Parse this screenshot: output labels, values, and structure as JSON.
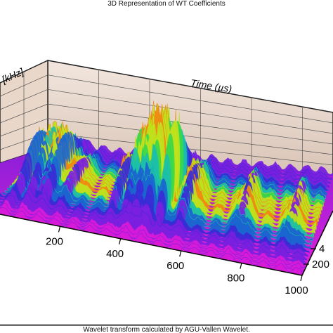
{
  "chart_data": {
    "type": "surface",
    "title": "3D Representation of WT Coefficients",
    "xlabel": "Time (µs)",
    "ylabel": "[kHz]",
    "x_ticks": [
      "200",
      "400",
      "600",
      "800",
      "1000"
    ],
    "y_ticks": [
      "4",
      "200"
    ],
    "xlim": [
      0,
      1000
    ],
    "grid": true,
    "colormap": [
      "#d81ad8",
      "#7b1fe0",
      "#3a2bd6",
      "#1a66d0",
      "#1cc0a8",
      "#39d84a",
      "#bfe21c",
      "#f08a12",
      "#e21a1a"
    ],
    "peaks": [
      {
        "t": 10,
        "amp": 0.42
      },
      {
        "t": 60,
        "amp": 0.38
      },
      {
        "t": 90,
        "amp": 0.3
      },
      {
        "t": 110,
        "amp": 0.28
      },
      {
        "t": 160,
        "amp": 0.22
      },
      {
        "t": 330,
        "amp": 0.32
      },
      {
        "t": 380,
        "amp": 0.55
      },
      {
        "t": 415,
        "amp": 0.62
      },
      {
        "t": 455,
        "amp": 0.78
      },
      {
        "t": 495,
        "amp": 0.66
      },
      {
        "t": 560,
        "amp": 0.34
      },
      {
        "t": 750,
        "amp": 0.24
      },
      {
        "t": 920,
        "amp": 0.2
      }
    ]
  },
  "caption": "Wavelet transform calculated by AGU-Vallen Wavelet."
}
